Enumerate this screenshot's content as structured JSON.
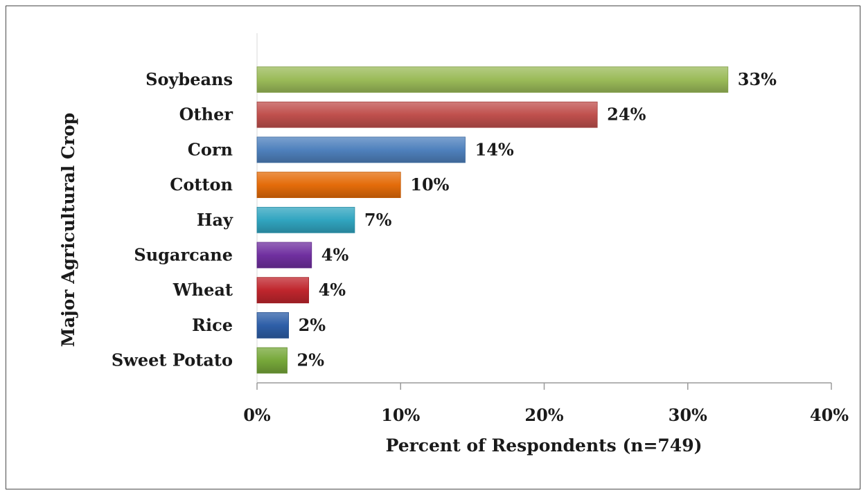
{
  "chart_data": {
    "type": "bar",
    "orientation": "horizontal",
    "categories": [
      "Soybeans",
      "Other",
      "Corn",
      "Cotton",
      "Hay",
      "Sugarcane",
      "Wheat",
      "Rice",
      "Sweet Potato"
    ],
    "values": [
      32.8,
      23.7,
      14.5,
      10.0,
      6.8,
      3.8,
      3.6,
      2.2,
      2.1
    ],
    "value_labels": [
      "33%",
      "24%",
      "14%",
      "10%",
      "7%",
      "4%",
      "4%",
      "2%",
      "2%"
    ],
    "colors": [
      "#9bbb59",
      "#c0504d",
      "#4f81bd",
      "#e46c0a",
      "#31a5c0",
      "#7030a0",
      "#c0262d",
      "#2e5fa8",
      "#77a83a"
    ],
    "xlim": [
      0,
      40
    ],
    "xticks": [
      0,
      10,
      20,
      30,
      40
    ],
    "xtick_labels": [
      "0%",
      "10%",
      "20%",
      "30%",
      "40%"
    ],
    "xlabel": "Percent of Respondents (n=749)",
    "ylabel": "Major Agricultural Crop",
    "title": "",
    "grid": false,
    "legend": "none"
  }
}
